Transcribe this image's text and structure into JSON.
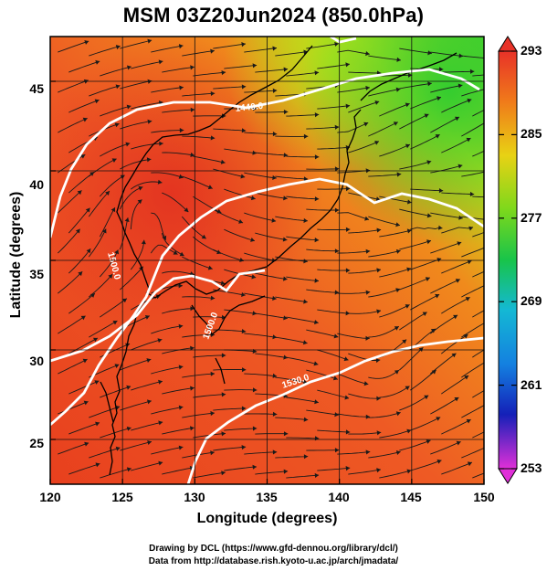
{
  "title": "MSM 03Z20Jun2024 (850.0hPa)",
  "xlabel": "Longitude (degrees)",
  "ylabel": "Latitude  (degrees)",
  "xticks": [
    "120",
    "125",
    "130",
    "135",
    "140",
    "145",
    "150"
  ],
  "yticks": [
    "45",
    "40",
    "35",
    "30",
    "25"
  ],
  "colorbar": {
    "ticks": [
      "293",
      "285",
      "277",
      "269",
      "261",
      "253"
    ],
    "colors": {
      "top": "#e83228",
      "upper": "#f08a1c",
      "mid_upper": "#cfe60c",
      "mid": "#1cc83c",
      "lower": "#12b8d0",
      "low": "#1428c0",
      "bottom": "#e030d8"
    }
  },
  "contours": {
    "labels": [
      "1440.0",
      "1500.0",
      "1530.0",
      "1500.0"
    ],
    "color": "#ffffff"
  },
  "credits": [
    "Drawing by DCL (https://www.gfd-dennou.org/library/dcl/)",
    "Data from http://database.rish.kyoto-u.ac.jp/arch/jmadata/"
  ],
  "chart_data": {
    "type": "heatmap",
    "title": "MSM 03Z20Jun2024 (850.0hPa)",
    "xlabel": "Longitude (degrees)",
    "ylabel": "Latitude  (degrees)",
    "xlim": [
      120,
      150
    ],
    "ylim": [
      22.5,
      47.5
    ],
    "color_range": [
      253,
      293
    ],
    "colorbar_ticks": [
      293,
      285,
      277,
      269,
      261,
      253
    ],
    "contour_labels": [
      "1440.0",
      "1500.0",
      "1530.0",
      "1500.0"
    ],
    "grid": true
  }
}
